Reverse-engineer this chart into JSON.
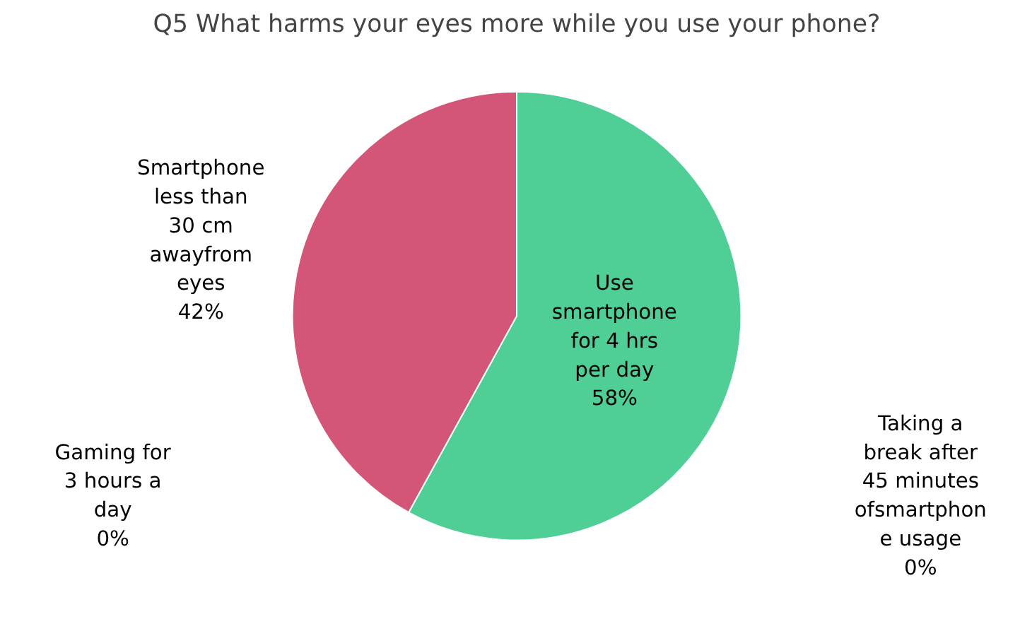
{
  "chart_data": {
    "type": "pie",
    "title": "Q5 What harms your eyes more while you use your phone?",
    "categories": [
      "Use smartphone for 4 hrs per day",
      "Taking a break after 45 minutes ofsmartphone usage",
      "Gaming for 3 hours a day",
      "Smartphone less than 30 cm awayfrom eyes"
    ],
    "values": [
      58,
      0,
      0,
      42
    ],
    "colors": [
      "#4fce95",
      "#2e7d57",
      "#b04a66",
      "#d35577"
    ],
    "value_labels": [
      "58%",
      "0%",
      "0%",
      "42%"
    ]
  }
}
